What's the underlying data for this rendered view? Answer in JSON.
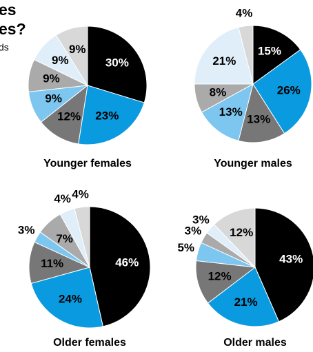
{
  "header": {
    "title_lines": [
      "es",
      "es?"
    ],
    "subtitle": "ds"
  },
  "chart_data": [
    {
      "type": "pie",
      "title": "Younger females",
      "values": [
        30,
        23,
        12,
        9,
        9,
        9,
        9
      ],
      "value_labels": [
        "30%",
        "23%",
        "12%",
        "9%",
        "9%",
        "9%",
        "9%"
      ],
      "colors": [
        "#000000",
        "#0a9ae0",
        "#777777",
        "#7cc6f0",
        "#aaaaaa",
        "#e0eefa",
        "#d8d8d8"
      ]
    },
    {
      "type": "pie",
      "title": "Younger males",
      "values": [
        15,
        26,
        13,
        13,
        8,
        21,
        4
      ],
      "value_labels": [
        "15%",
        "26%",
        "13%",
        "13%",
        "8%",
        "21%",
        "4%"
      ],
      "colors": [
        "#000000",
        "#0a9ae0",
        "#777777",
        "#7cc6f0",
        "#aaaaaa",
        "#e0eefa",
        "#d8d8d8"
      ]
    },
    {
      "type": "pie",
      "title": "Older females",
      "values": [
        46,
        24,
        11,
        3,
        7,
        4,
        4
      ],
      "value_labels": [
        "46%",
        "24%",
        "11%",
        "3%",
        "7%",
        "4%",
        "4%"
      ],
      "colors": [
        "#000000",
        "#0a9ae0",
        "#777777",
        "#7cc6f0",
        "#aaaaaa",
        "#e0eefa",
        "#d8d8d8"
      ]
    },
    {
      "type": "pie",
      "title": "Older males",
      "values": [
        43,
        21,
        12,
        5,
        3,
        3,
        12
      ],
      "value_labels": [
        "43%",
        "21%",
        "12%",
        "5%",
        "3%",
        "3%",
        "12%"
      ],
      "colors": [
        "#000000",
        "#0a9ae0",
        "#777777",
        "#7cc6f0",
        "#aaaaaa",
        "#e0eefa",
        "#d8d8d8"
      ]
    }
  ]
}
